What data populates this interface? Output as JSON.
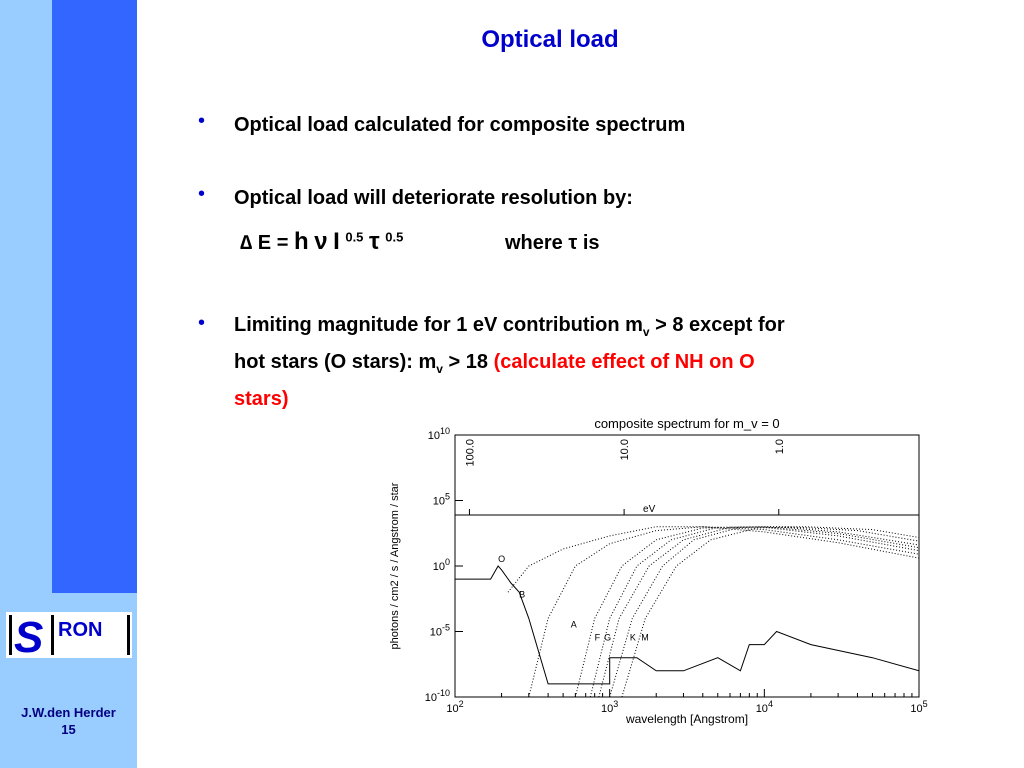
{
  "sidebar": {
    "logo_alt": "SRON",
    "author": "J.W.den Herder",
    "page": "15"
  },
  "slide": {
    "title": "Optical load",
    "bullets": [
      "Optical load calculated for composite spectrum",
      "Optical load will deteriorate resolution by:"
    ],
    "formula": {
      "delta": "∆",
      "eq": " E = ",
      "h": "h",
      "nu": "ν",
      "I": "I",
      "exp1": "0.5",
      "tau": "τ",
      "exp2": "0.5"
    },
    "where": "where τ is",
    "bullet3_part1": "Limiting magnitude for 1 eV contribution m",
    "bullet3_sub1": "v",
    "bullet3_part2": " > 8 except for",
    "bullet3_line2a": "hot stars (O stars): m",
    "bullet3_sub2": "v",
    "bullet3_line2b": " > 18 ",
    "bullet3_red": "(calculate effect of NH on O",
    "bullet3_red2": "stars)"
  },
  "chart_data": {
    "type": "line",
    "title": "composite spectrum for m_v =   0",
    "xlabel": "wavelength [Angstrom]",
    "ylabel": "photons / cm2 / s / Angstrom / star",
    "x_scale": "log",
    "y_scale": "log",
    "xlim": [
      100,
      100000
    ],
    "ylim": [
      1e-10,
      10000000000.0
    ],
    "x_ticks": [
      "10^2",
      "10^3",
      "10^4",
      "10^5"
    ],
    "y_ticks": [
      "10^-10",
      "10^-5",
      "10^0",
      "10^5",
      "10^10"
    ],
    "top_axis_label": "eV",
    "top_axis_ticks": [
      "100.0",
      "10.0",
      "1.0"
    ],
    "annotations": [
      "O",
      "B",
      "A",
      "F",
      "G",
      "K",
      "M"
    ],
    "series": [
      {
        "name": "O",
        "style": "dotted",
        "x": [
          220,
          300,
          500,
          1000,
          2000,
          4000,
          10000,
          30000,
          100000
        ],
        "y": [
          0.01,
          1,
          20,
          200,
          1000,
          1000,
          400,
          60,
          4
        ]
      },
      {
        "name": "B",
        "style": "dotted",
        "x": [
          300,
          400,
          600,
          1000,
          2000,
          4000,
          10000,
          30000,
          100000
        ],
        "y": [
          1e-10,
          0.0001,
          1,
          50,
          500,
          1000,
          600,
          100,
          8
        ]
      },
      {
        "name": "A",
        "style": "dotted",
        "x": [
          600,
          800,
          1200,
          2000,
          4000,
          10000,
          30000,
          100000
        ],
        "y": [
          1e-10,
          0.0001,
          1,
          100,
          800,
          900,
          200,
          15
        ]
      },
      {
        "name": "F",
        "style": "dotted",
        "x": [
          750,
          1000,
          1500,
          2500,
          5000,
          10000,
          30000,
          100000
        ],
        "y": [
          1e-10,
          0.0001,
          1,
          100,
          900,
          1000,
          300,
          25
        ]
      },
      {
        "name": "G",
        "style": "dotted",
        "x": [
          850,
          1150,
          1800,
          3000,
          6000,
          12000,
          30000,
          100000
        ],
        "y": [
          1e-10,
          0.0001,
          1,
          100,
          900,
          1000,
          400,
          40
        ]
      },
      {
        "name": "K",
        "style": "dotted",
        "x": [
          1000,
          1400,
          2200,
          3500,
          7000,
          14000,
          40000,
          100000
        ],
        "y": [
          1e-10,
          0.0001,
          1,
          100,
          900,
          1000,
          500,
          80
        ]
      },
      {
        "name": "M",
        "style": "dotted",
        "x": [
          1200,
          1700,
          2700,
          4500,
          9000,
          18000,
          50000,
          100000
        ],
        "y": [
          1e-10,
          0.0001,
          1,
          100,
          800,
          1000,
          600,
          150
        ]
      },
      {
        "name": "composite",
        "style": "solid",
        "x": [
          100,
          170,
          190,
          200,
          230,
          260,
          300,
          400,
          1000,
          1000,
          1100,
          1500,
          2000,
          3000,
          5000,
          7000,
          8000,
          10000,
          12000,
          20000,
          50000,
          100000
        ],
        "y": [
          0.1,
          0.1,
          1,
          0.5,
          0.05,
          0.01,
          0.0001,
          1e-09,
          1e-09,
          1e-07,
          1e-07,
          1e-07,
          1e-08,
          1e-08,
          1e-07,
          1e-08,
          1e-06,
          1e-06,
          1e-05,
          1e-06,
          1e-07,
          1e-08
        ]
      }
    ]
  }
}
